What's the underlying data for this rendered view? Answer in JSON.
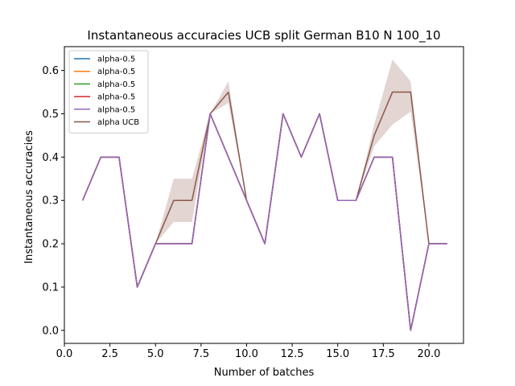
{
  "chart_data": {
    "type": "line",
    "title": "Instantaneous accuracies UCB split German B10 N 100_10",
    "xlabel": "Number of batches",
    "ylabel": "Instantaneous accuracies",
    "xlim": [
      0.0,
      21.9
    ],
    "ylim": [
      -0.03,
      0.655
    ],
    "xticks": [
      0.0,
      2.5,
      5.0,
      7.5,
      10.0,
      12.5,
      15.0,
      17.5,
      20.0
    ],
    "xtick_labels": [
      "0.0",
      "2.5",
      "5.0",
      "7.5",
      "10.0",
      "12.5",
      "15.0",
      "17.5",
      "20.0"
    ],
    "yticks": [
      0.0,
      0.1,
      0.2,
      0.3,
      0.4,
      0.5,
      0.6
    ],
    "ytick_labels": [
      "0.0",
      "0.1",
      "0.2",
      "0.3",
      "0.4",
      "0.5",
      "0.6"
    ],
    "grid": false,
    "legend_position": "top-left",
    "x": [
      1,
      2,
      3,
      4,
      5,
      6,
      7,
      8,
      9,
      10,
      11,
      12,
      13,
      14,
      15,
      16,
      17,
      18,
      19,
      20,
      21
    ],
    "series": [
      {
        "name": "alpha-0.5",
        "color": "#1f77b4",
        "values": [
          0.3,
          0.4,
          0.4,
          0.1,
          0.2,
          0.2,
          0.2,
          0.5,
          0.4,
          0.3,
          0.2,
          0.5,
          0.4,
          0.5,
          0.3,
          0.3,
          0.4,
          0.4,
          0.0,
          0.2,
          0.2
        ]
      },
      {
        "name": "alpha-0.5",
        "color": "#ff7f0e",
        "values": [
          0.3,
          0.4,
          0.4,
          0.1,
          0.2,
          0.2,
          0.2,
          0.5,
          0.4,
          0.3,
          0.2,
          0.5,
          0.4,
          0.5,
          0.3,
          0.3,
          0.4,
          0.4,
          0.0,
          0.2,
          0.2
        ]
      },
      {
        "name": "alpha-0.5",
        "color": "#2ca02c",
        "values": [
          0.3,
          0.4,
          0.4,
          0.1,
          0.2,
          0.2,
          0.2,
          0.5,
          0.4,
          0.3,
          0.2,
          0.5,
          0.4,
          0.5,
          0.3,
          0.3,
          0.4,
          0.4,
          0.0,
          0.2,
          0.2
        ]
      },
      {
        "name": "alpha-0.5",
        "color": "#d62728",
        "values": [
          0.3,
          0.4,
          0.4,
          0.1,
          0.2,
          0.2,
          0.2,
          0.5,
          0.4,
          0.3,
          0.2,
          0.5,
          0.4,
          0.5,
          0.3,
          0.3,
          0.4,
          0.4,
          0.0,
          0.2,
          0.2
        ]
      },
      {
        "name": "alpha-0.5",
        "color": "#9467bd",
        "values": [
          0.3,
          0.4,
          0.4,
          0.1,
          0.2,
          0.2,
          0.2,
          0.5,
          0.4,
          0.3,
          0.2,
          0.5,
          0.4,
          0.5,
          0.3,
          0.3,
          0.4,
          0.4,
          0.0,
          0.2,
          0.2
        ]
      },
      {
        "name": "alpha UCB",
        "color": "#8c564b",
        "values": [
          0.3,
          0.4,
          0.4,
          0.1,
          0.2,
          0.3,
          0.3,
          0.5,
          0.55,
          0.3,
          0.2,
          0.5,
          0.4,
          0.5,
          0.3,
          0.3,
          0.45,
          0.55,
          0.55,
          0.2,
          0.2
        ],
        "band_lower": [
          0.3,
          0.4,
          0.4,
          0.1,
          0.2,
          0.25,
          0.25,
          0.5,
          0.525,
          0.3,
          0.2,
          0.5,
          0.4,
          0.5,
          0.3,
          0.3,
          0.425,
          0.475,
          0.505,
          0.2,
          0.2
        ],
        "band_upper": [
          0.3,
          0.4,
          0.4,
          0.1,
          0.2,
          0.35,
          0.35,
          0.5,
          0.575,
          0.3,
          0.2,
          0.5,
          0.4,
          0.5,
          0.3,
          0.3,
          0.475,
          0.625,
          0.575,
          0.2,
          0.2
        ]
      }
    ]
  }
}
